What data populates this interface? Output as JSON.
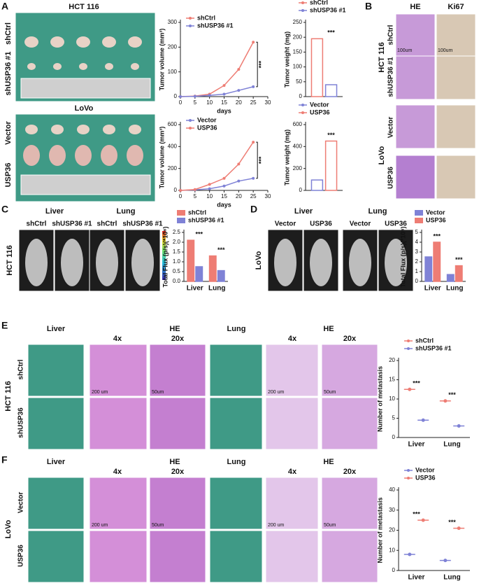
{
  "panel_labels": [
    "A",
    "B",
    "C",
    "D",
    "E",
    "F"
  ],
  "panel_a": {
    "titles": [
      "HCT 116",
      "LoVo"
    ],
    "rows": [
      "shCtrl",
      "shUSP36 #1",
      "Vector",
      "USP36"
    ]
  },
  "panel_b": {
    "columns": [
      "HE",
      "Ki67"
    ],
    "groups": [
      "HCT 116",
      "LoVo"
    ],
    "rows": [
      "shCtrl",
      "shUSP36 #1",
      "Vector",
      "USP36"
    ],
    "scales": [
      "100um",
      "100um"
    ]
  },
  "panel_c": {
    "cell_line": "HCT 116",
    "organs": [
      "Liver",
      "Lung"
    ],
    "mice": [
      "shCtrl",
      "shUSP36 #1",
      "shCtrl",
      "shUSP36 #1"
    ]
  },
  "panel_d": {
    "cell_line": "LoVo",
    "organs": [
      "Liver",
      "Lung"
    ],
    "mice": [
      "Vector",
      "USP36",
      "Vector",
      "USP36"
    ]
  },
  "panel_e": {
    "cell_line": "HCT 116",
    "rows": [
      "shCtrl",
      "shUSP36"
    ],
    "columns": [
      "Liver",
      "HE",
      "4x",
      "20x",
      "Lung",
      "HE",
      "4x",
      "20x"
    ],
    "scales": [
      "200 um",
      "50um",
      "200 um",
      "50um"
    ]
  },
  "panel_f": {
    "cell_line": "LoVo",
    "rows": [
      "Vector",
      "USP36"
    ],
    "columns": [
      "Liver",
      "HE",
      "4x",
      "20x",
      "Lung",
      "HE",
      "4x",
      "20x"
    ],
    "scales": [
      "200 um",
      "50um",
      "200 um",
      "50um"
    ]
  },
  "chart_data": [
    {
      "type": "line",
      "ylabel": "Tumor volume (mm³)",
      "xlabel": "days",
      "x": [
        0,
        5,
        10,
        15,
        20,
        25
      ],
      "series": [
        {
          "name": "shCtrl",
          "color": "#ee7d74",
          "values": [
            0,
            2,
            10,
            45,
            110,
            220
          ]
        },
        {
          "name": "shUSP36 #1",
          "color": "#7f82d6",
          "values": [
            0,
            1,
            5,
            10,
            25,
            40
          ]
        }
      ],
      "xlim": [
        0,
        30
      ],
      "xticks": [
        0,
        5,
        10,
        15,
        20,
        25,
        30
      ],
      "ylim": [
        0,
        300
      ],
      "yticks": [
        0,
        100,
        200,
        300
      ],
      "annotations": [
        "***"
      ]
    },
    {
      "type": "bar",
      "bar_style": "outline",
      "ylabel": "Tumor weight (mg)",
      "series": [
        {
          "name": "shCtrl",
          "color": "#ee7d74",
          "values": [
            195
          ]
        },
        {
          "name": "shUSP36 #1",
          "color": "#7f82d6",
          "values": [
            40
          ]
        }
      ],
      "ylim": [
        0,
        250
      ],
      "yticks": [
        0,
        50,
        100,
        150,
        200,
        250
      ],
      "annotations": [
        "***"
      ]
    },
    {
      "type": "line",
      "ylabel": "Tumor volume (mm³)",
      "xlabel": "days",
      "x": [
        0,
        5,
        10,
        15,
        20,
        25
      ],
      "series": [
        {
          "name": "Vector",
          "color": "#7f82d6",
          "values": [
            0,
            5,
            15,
            40,
            85,
            110
          ]
        },
        {
          "name": "USP36",
          "color": "#ee7d74",
          "values": [
            0,
            8,
            55,
            110,
            240,
            440
          ]
        }
      ],
      "xlim": [
        0,
        30
      ],
      "xticks": [
        0,
        5,
        10,
        15,
        20,
        25,
        30
      ],
      "ylim": [
        0,
        600
      ],
      "yticks": [
        0,
        200,
        400,
        600
      ],
      "annotations": [
        "***"
      ]
    },
    {
      "type": "bar",
      "bar_style": "outline",
      "ylabel": "Tumor weight (mg)",
      "series": [
        {
          "name": "Vector",
          "color": "#7f82d6",
          "values": [
            95
          ]
        },
        {
          "name": "USP36",
          "color": "#ee7d74",
          "values": [
            450
          ]
        }
      ],
      "ylim": [
        0,
        600
      ],
      "yticks": [
        0,
        200,
        400,
        600
      ],
      "annotations": [
        "***"
      ]
    },
    {
      "type": "bar",
      "bar_style": "filled",
      "ylabel": "Total Flux (p/s)(*10⁸)",
      "categories": [
        "Liver",
        "Lung"
      ],
      "series": [
        {
          "name": "shCtrl",
          "color": "#ee7d74",
          "values": [
            2.1,
            1.3
          ]
        },
        {
          "name": "shUSP36 #1",
          "color": "#7f82d6",
          "values": [
            0.75,
            0.55
          ]
        }
      ],
      "ylim": [
        0,
        2.5
      ],
      "yticks": [
        {
          "value": 0,
          "label": "0.0"
        },
        0.5,
        {
          "value": 1,
          "label": "1.0"
        },
        1.5,
        {
          "value": 2,
          "label": "2.0"
        },
        2.5
      ],
      "annotations": [
        "***",
        "***"
      ]
    },
    {
      "type": "bar",
      "bar_style": "filled",
      "ylabel": "Total Flux (p/s)(*10⁸)",
      "categories": [
        "Liver",
        "Lung"
      ],
      "series": [
        {
          "name": "Vector",
          "color": "#7f82d6",
          "values": [
            2.5,
            0.7
          ]
        },
        {
          "name": "USP36",
          "color": "#ee7d74",
          "values": [
            4.0,
            1.6
          ]
        }
      ],
      "ylim": [
        0,
        5
      ],
      "yticks": [
        0,
        1,
        2,
        3,
        4,
        5
      ],
      "annotations": [
        "***",
        "***"
      ]
    },
    {
      "type": "scatter",
      "ylabel": "Number of metastasis",
      "categories": [
        "Liver",
        "Lung"
      ],
      "series": [
        {
          "name": "shCtrl",
          "color": "#ee7d74",
          "values": [
            12.5,
            9.5
          ]
        },
        {
          "name": "shUSP36 #1",
          "color": "#7f82d6",
          "values": [
            4.5,
            3
          ]
        }
      ],
      "ylim": [
        0,
        20
      ],
      "yticks": [
        0,
        5,
        10,
        15,
        20
      ],
      "annotations": [
        "***",
        "***"
      ]
    },
    {
      "type": "scatter",
      "ylabel": "Number of metastasis",
      "categories": [
        "Liver",
        "Lung"
      ],
      "series": [
        {
          "name": "Vector",
          "color": "#7f82d6",
          "values": [
            8,
            5
          ]
        },
        {
          "name": "USP36",
          "color": "#ee7d74",
          "values": [
            25,
            21
          ]
        }
      ],
      "ylim": [
        0,
        40
      ],
      "yticks": [
        0,
        10,
        20,
        30,
        40
      ],
      "annotations": [
        "***",
        "***"
      ]
    }
  ]
}
